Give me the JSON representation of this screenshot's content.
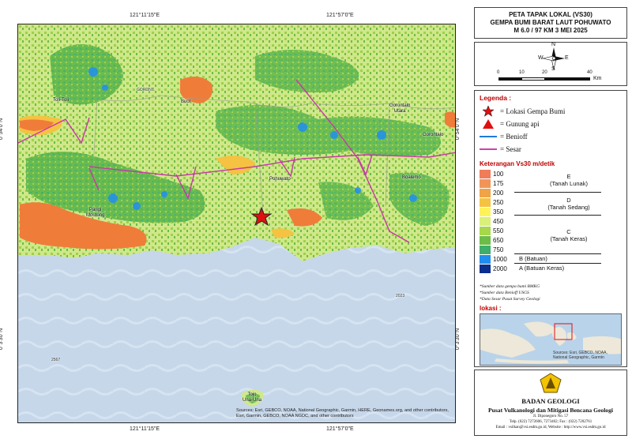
{
  "map": {
    "top_lon_labels": [
      "121°11'15\"E",
      "121°57'0\"E"
    ],
    "bottom_lon_labels": [
      "121°11'15\"E",
      "121°57'0\"E"
    ],
    "lat_labels": [
      "0°54'0\"N",
      "0°3'30\"N"
    ],
    "places": {
      "tolitoli": "Toli-Toli",
      "buol": "Buol",
      "gorontalo_utara": "Gorontalo\nUtara",
      "gorontalo": "Gorontalo",
      "pohuwato": "Pohuwato",
      "boalemo": "Boalemo",
      "parigi_moutong": "Parigi\nMoutong",
      "tojo_una_una": "Tojo\nUna-Una",
      "depth_2023": "2023",
      "depth_2567": "2567",
      "gorontalo_small": "GORONT."
    },
    "attribution": "Sources: Esri, GEBCO, NOAA, National Geographic, Garmin, HERE, Geonames.org, and other contributors, Esri, Garmin, GEBCO, NOAA NGDC, and other contributors"
  },
  "title": {
    "line1": "PETA TAPAK LOKAL (VS30)",
    "line2": "GEMPA BUMI BARAT LAUT POHUWATO",
    "line3": "M 6.0 / 97 KM  3 MEI 2025"
  },
  "north_arrow": {
    "n": "N",
    "s": "S",
    "e": "E",
    "w": "W"
  },
  "scale_bar": {
    "ticks": [
      "0",
      "10",
      "20",
      "40"
    ],
    "unit": "Km"
  },
  "legend": {
    "title": "Legenda :",
    "symbols": [
      {
        "label": "= Lokasi Gempa Bumi",
        "icon": "star-icon",
        "color": "#e01010"
      },
      {
        "label": "= Gunung api",
        "icon": "triangle-icon",
        "color": "#e01010"
      },
      {
        "label": "= Benioff",
        "icon": "line-icon",
        "color": "#1e7ad8"
      },
      {
        "label": "= Sesar",
        "icon": "line-icon",
        "color": "#d040b0"
      }
    ],
    "vs30_title": "Keterangan Vs30 m/detik",
    "vs30_rows": [
      {
        "value": "100",
        "color": "#f07c5a"
      },
      {
        "value": "175",
        "color": "#f0955a"
      },
      {
        "value": "200",
        "color": "#f0a347"
      },
      {
        "value": "250",
        "color": "#f5c242"
      },
      {
        "value": "350",
        "color": "#fff35a"
      },
      {
        "value": "450",
        "color": "#d9f07a"
      },
      {
        "value": "550",
        "color": "#a6d84a"
      },
      {
        "value": "650",
        "color": "#6bbd48"
      },
      {
        "value": "750",
        "color": "#3fae6a"
      },
      {
        "value": "1000",
        "color": "#1f8ef0"
      },
      {
        "value": "2000",
        "color": "#0a2f8f"
      }
    ],
    "classes": [
      {
        "letter": "E",
        "name": "(Tanah Lunak)"
      },
      {
        "letter": "D",
        "name": "(Tanah Sedang)"
      },
      {
        "letter": "C",
        "name": "(Tanah Keras)"
      },
      {
        "letter": "B",
        "name": "(Batuan)"
      },
      {
        "letter": "A",
        "name": "(Batuan Keras)"
      }
    ],
    "notes": [
      "*Sumber data gempa bumi BMKG",
      "*Sumber data Benioff USGS",
      "*Data Sesar Pusat Survey Geologi"
    ],
    "lokasi_title": "lokasi :",
    "inset_credit": "Sources: Esri, GEBCO, NOAA, National Geographic, Garmin"
  },
  "footer": {
    "agency": "BADAN GEOLOGI",
    "center": "Pusat Vulkanologi dan Mitigasi Bencana Geologi",
    "address1": "Jl. Diponegoro No. 57",
    "address2": "Telp. (022) 7272606, 7273402; Fax : (022) 7202761",
    "address3": "Email : vsilkan@vsi.esdm.go.id, Website : http://www.vsi.esdm.go.id"
  },
  "colors": {
    "sea": "#c6d7ea",
    "land_base": "#cfe88a",
    "fault": "#c838a8",
    "benioff": "#1e7ad8",
    "title_red": "#c00000"
  }
}
